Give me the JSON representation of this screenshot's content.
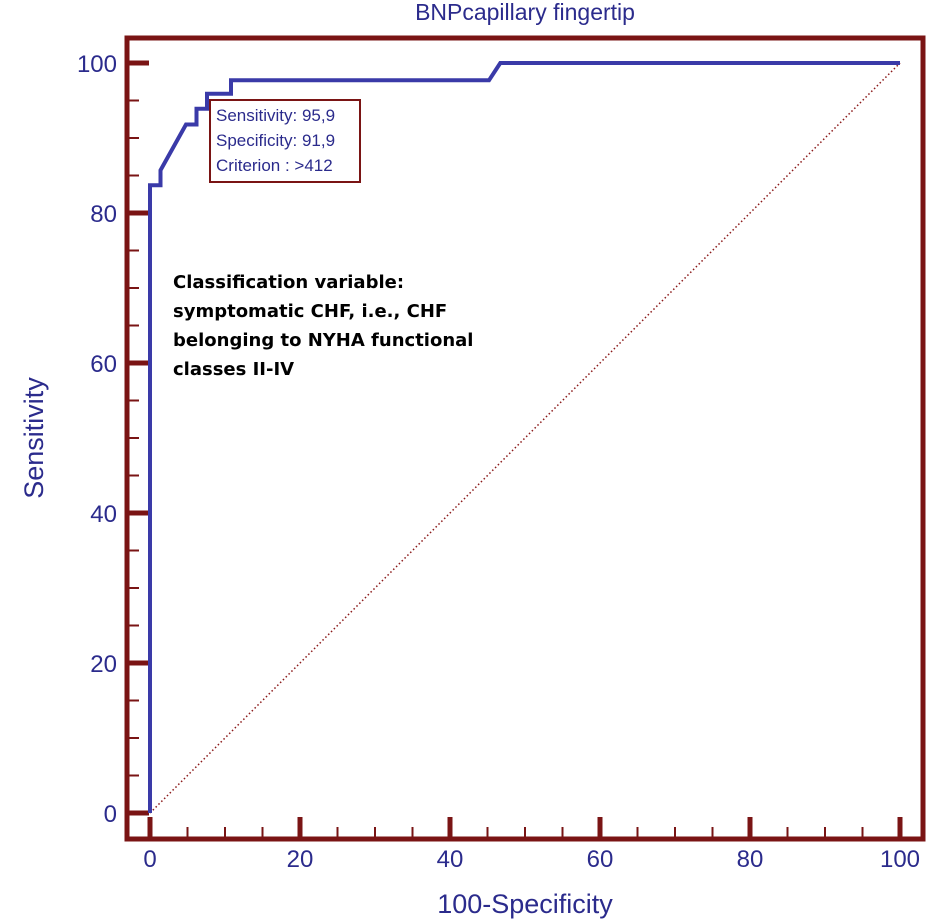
{
  "chart_data": {
    "type": "line",
    "title": "BNPcapillary fingertip",
    "xlabel": "100-Specificity",
    "ylabel": "Sensitivity",
    "xlim": [
      0,
      100
    ],
    "ylim": [
      0,
      100
    ],
    "x_ticks": [
      "0",
      "20",
      "40",
      "60",
      "80",
      "100"
    ],
    "y_ticks": [
      "0",
      "20",
      "40",
      "60",
      "80",
      "100"
    ],
    "grid": false,
    "series": [
      {
        "x": [
          0,
          0,
          0,
          1.4,
          1.4,
          4.8,
          6.2,
          6.2,
          7.6,
          7.6,
          8.1,
          10.8,
          10.8,
          45.2,
          46.7,
          100
        ],
        "y": [
          0,
          83.3,
          83.7,
          83.7,
          85.7,
          91.8,
          91.8,
          93.9,
          93.9,
          95.9,
          95.9,
          95.9,
          97.7,
          97.7,
          100,
          100
        ]
      },
      {
        "x": [
          0,
          100
        ],
        "y": [
          0,
          100
        ]
      }
    ],
    "annotation_box": [
      "Sensitivity: 95,9",
      "Specificity: 91,9",
      "Criterion : >412"
    ],
    "note_lines": [
      "Classification variable:",
      "symptomatic CHF, i.e., CHF",
      "belonging to NYHA functional",
      "classes II-IV"
    ]
  },
  "colors": {
    "frame": "#7a1414",
    "roc_line": "#3a3aa8",
    "diagonal": "#8b1a1a",
    "text": "#2b2b8c"
  }
}
